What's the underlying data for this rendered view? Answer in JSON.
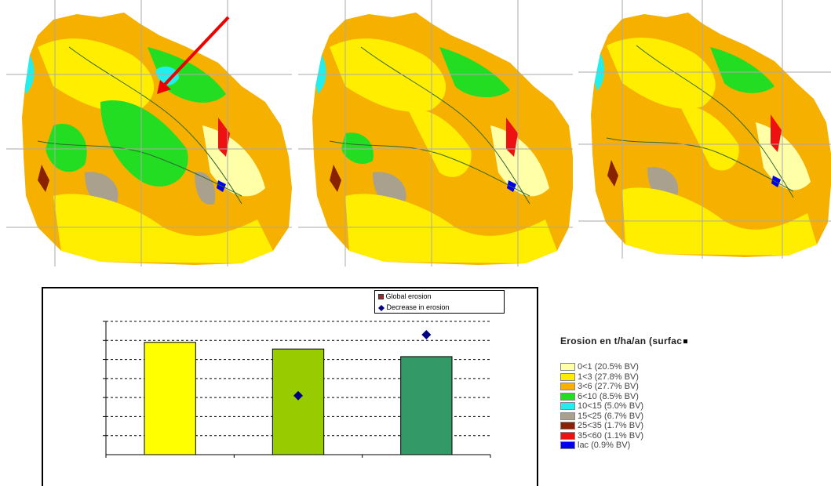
{
  "maps": [
    {
      "id": "map-1",
      "has_arrow": true
    },
    {
      "id": "map-2",
      "has_arrow": false
    },
    {
      "id": "map-3",
      "has_arrow": false
    }
  ],
  "chart_data": {
    "type": "bar",
    "categories": [
      "",
      "",
      ""
    ],
    "series": [
      {
        "name": "Global erosion",
        "values": [
          5.9,
          5.55,
          5.15
        ],
        "colors": [
          "#ffff00",
          "#99cc00",
          "#339966"
        ]
      },
      {
        "name": "Decrease in erosion",
        "values": [
          null,
          3.1,
          6.3
        ],
        "color": "#000080"
      }
    ],
    "ylim": [
      0,
      7
    ],
    "grid": true,
    "legend_position": "top-right"
  },
  "legend": {
    "title": "Erosion en t/ha/an (surfac",
    "items": [
      {
        "label": "0<1 (20.5% BV)",
        "color": "#ffffa8"
      },
      {
        "label": "1<3 (27.8% BV)",
        "color": "#ffee00"
      },
      {
        "label": "3<6 (27.7% BV)",
        "color": "#f5b000"
      },
      {
        "label": "6<10 (8.5% BV)",
        "color": "#22dd22"
      },
      {
        "label": "10<15 (5.0% BV)",
        "color": "#22eeee"
      },
      {
        "label": "15<25 (6.7% BV)",
        "color": "#aaa08e"
      },
      {
        "label": "25<35 (1.7% BV)",
        "color": "#882200"
      },
      {
        "label": "35<60 (1.1% BV)",
        "color": "#ee1111"
      },
      {
        "label": "lac (0.9% BV)",
        "color": "#0000ee"
      }
    ]
  }
}
